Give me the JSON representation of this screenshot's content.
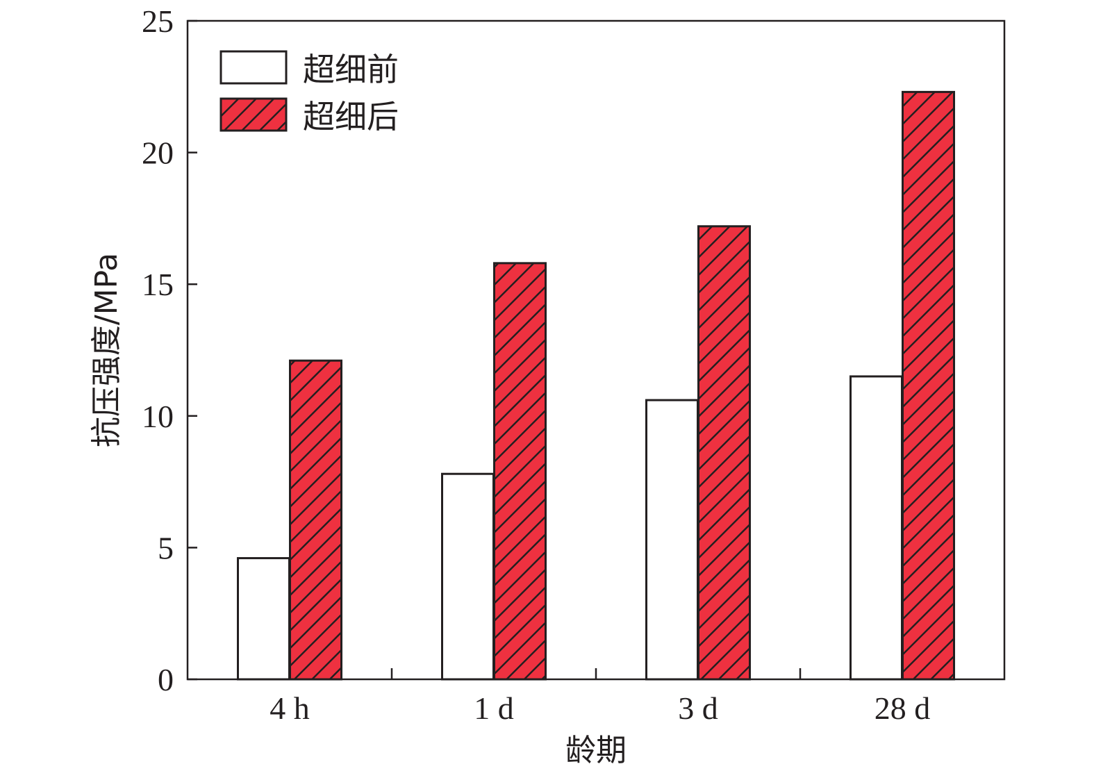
{
  "chart_data": {
    "type": "bar",
    "categories": [
      "4 h",
      "1 d",
      "3 d",
      "28 d"
    ],
    "series": [
      {
        "name": "超细前",
        "values": [
          4.6,
          7.8,
          10.6,
          11.5
        ],
        "fill": "#ffffff",
        "pattern": "none"
      },
      {
        "name": "超细后",
        "values": [
          12.1,
          15.8,
          17.2,
          22.3
        ],
        "fill": "#ee3140",
        "pattern": "diagonal-hatch"
      }
    ],
    "title": "",
    "xlabel": "龄期",
    "ylabel": "抗压强度/MPa",
    "ylim": [
      0,
      25
    ],
    "yticks": [
      0,
      5,
      10,
      15,
      20,
      25
    ],
    "grid": false,
    "legend_position": "top-left"
  },
  "colors": {
    "axis": "#231f20",
    "bar_outline": "#231f20",
    "hatch": "#231f20"
  }
}
